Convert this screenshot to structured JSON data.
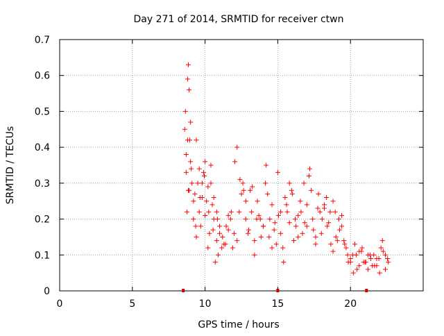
{
  "colors": {
    "points": "#ff0000",
    "axes": "#000000",
    "grid": "#a0a0a0",
    "markers": "#cc0000"
  },
  "chart_data": {
    "type": "scatter",
    "title": "Day 271 of 2014, SRMTID for receiver ctwn",
    "xlabel": "GPS time / hours",
    "ylabel": "SRMTID / TECUs",
    "xlim": [
      0,
      25
    ],
    "ylim": [
      0,
      0.7
    ],
    "xticks": [
      0,
      5,
      10,
      15,
      20
    ],
    "xtick_labels": [
      "0",
      "5",
      "10",
      "15",
      "20"
    ],
    "yticks": [
      0,
      0.1,
      0.2,
      0.3,
      0.4,
      0.5,
      0.6,
      0.7
    ],
    "ytick_labels": [
      "0",
      "0.1",
      "0.2",
      "0.3",
      "0.4",
      "0.5",
      "0.6",
      "0.7"
    ],
    "grid": true,
    "marker": "+",
    "axis_markers_x": [
      8.5,
      15,
      21.1
    ],
    "series": [
      {
        "name": "SRMTID",
        "x": [
          8.6,
          8.65,
          8.7,
          8.75,
          8.8,
          8.85,
          8.9,
          8.95,
          9.0,
          9.1,
          9.2,
          9.3,
          9.4,
          9.5,
          9.6,
          9.7,
          9.8,
          9.9,
          10.0,
          10.1,
          10.2,
          10.3,
          10.4,
          10.5,
          10.6,
          10.7,
          10.8,
          10.9,
          11.0,
          11.2,
          11.4,
          11.6,
          11.8,
          12.0,
          12.2,
          12.4,
          12.6,
          12.8,
          13.0,
          13.2,
          13.4,
          13.6,
          13.8,
          14.0,
          14.2,
          14.4,
          14.6,
          14.8,
          15.0,
          15.2,
          15.4,
          15.6,
          15.8,
          16.0,
          16.2,
          16.4,
          16.6,
          16.8,
          17.0,
          17.2,
          17.4,
          17.6,
          17.8,
          18.0,
          18.2,
          18.4,
          18.6,
          18.8,
          19.0,
          19.2,
          19.4,
          19.6,
          19.8,
          20.0,
          20.2,
          20.4,
          20.6,
          20.8,
          21.0,
          21.2,
          21.4,
          21.6,
          21.8,
          22.0,
          22.2,
          22.4,
          22.6,
          8.7,
          8.8,
          8.9,
          9.0,
          9.2,
          9.4,
          9.6,
          9.8,
          10.0,
          10.2,
          10.4,
          10.6,
          10.8,
          11.0,
          11.3,
          11.6,
          11.9,
          12.2,
          12.5,
          12.8,
          13.1,
          13.4,
          13.7,
          14.0,
          14.3,
          14.6,
          14.9,
          15.2,
          15.5,
          15.8,
          16.1,
          16.4,
          16.7,
          17.0,
          17.3,
          17.6,
          17.9,
          18.2,
          18.5,
          18.8,
          19.1,
          19.4,
          19.7,
          20.0,
          20.3,
          20.6,
          20.9,
          21.2,
          21.5,
          21.8,
          22.1,
          22.4,
          8.85,
          9.05,
          9.35,
          9.65,
          9.95,
          10.25,
          10.55,
          10.85,
          11.15,
          11.45,
          11.75,
          12.05,
          12.35,
          12.65,
          12.95,
          13.25,
          13.55,
          13.85,
          14.15,
          14.45,
          14.75,
          15.05,
          15.35,
          15.65,
          15.95,
          16.25,
          16.55,
          16.85,
          17.15,
          17.45,
          17.75,
          18.05,
          18.35,
          18.65,
          18.95,
          19.25,
          19.55,
          19.85,
          20.15,
          20.45,
          20.75,
          21.05,
          21.35,
          21.65,
          21.95,
          22.25,
          22.55
        ],
        "y": [
          0.45,
          0.5,
          0.38,
          0.22,
          0.59,
          0.63,
          0.56,
          0.42,
          0.47,
          0.3,
          0.25,
          0.27,
          0.42,
          0.3,
          0.22,
          0.18,
          0.3,
          0.33,
          0.36,
          0.25,
          0.12,
          0.16,
          0.3,
          0.24,
          0.2,
          0.08,
          0.22,
          0.1,
          0.16,
          0.15,
          0.13,
          0.17,
          0.22,
          0.16,
          0.4,
          0.31,
          0.3,
          0.2,
          0.17,
          0.22,
          0.1,
          0.25,
          0.2,
          0.18,
          0.35,
          0.15,
          0.12,
          0.19,
          0.33,
          0.22,
          0.08,
          0.24,
          0.19,
          0.27,
          0.2,
          0.15,
          0.22,
          0.3,
          0.18,
          0.34,
          0.2,
          0.13,
          0.27,
          0.16,
          0.24,
          0.18,
          0.22,
          0.11,
          0.15,
          0.2,
          0.18,
          0.13,
          0.1,
          0.08,
          0.05,
          0.1,
          0.07,
          0.12,
          0.08,
          0.06,
          0.09,
          0.1,
          0.07,
          0.05,
          0.14,
          0.1,
          0.08,
          0.33,
          0.42,
          0.28,
          0.36,
          0.2,
          0.15,
          0.34,
          0.26,
          0.21,
          0.29,
          0.35,
          0.26,
          0.14,
          0.18,
          0.13,
          0.21,
          0.12,
          0.14,
          0.27,
          0.25,
          0.28,
          0.14,
          0.21,
          0.18,
          0.27,
          0.24,
          0.13,
          0.16,
          0.26,
          0.3,
          0.14,
          0.21,
          0.16,
          0.24,
          0.28,
          0.15,
          0.22,
          0.23,
          0.19,
          0.25,
          0.14,
          0.21,
          0.12,
          0.09,
          0.13,
          0.11,
          0.08,
          0.1,
          0.07,
          0.09,
          0.12,
          0.06,
          0.28,
          0.34,
          0.18,
          0.26,
          0.32,
          0.22,
          0.17,
          0.2,
          0.12,
          0.18,
          0.2,
          0.36,
          0.22,
          0.28,
          0.16,
          0.29,
          0.2,
          0.15,
          0.3,
          0.2,
          0.17,
          0.21,
          0.12,
          0.22,
          0.28,
          0.18,
          0.25,
          0.19,
          0.32,
          0.17,
          0.23,
          0.2,
          0.26,
          0.13,
          0.22,
          0.17,
          0.14,
          0.08,
          0.1,
          0.06,
          0.11,
          0.08,
          0.1,
          0.07,
          0.09,
          0.11,
          0.09
        ]
      }
    ]
  }
}
